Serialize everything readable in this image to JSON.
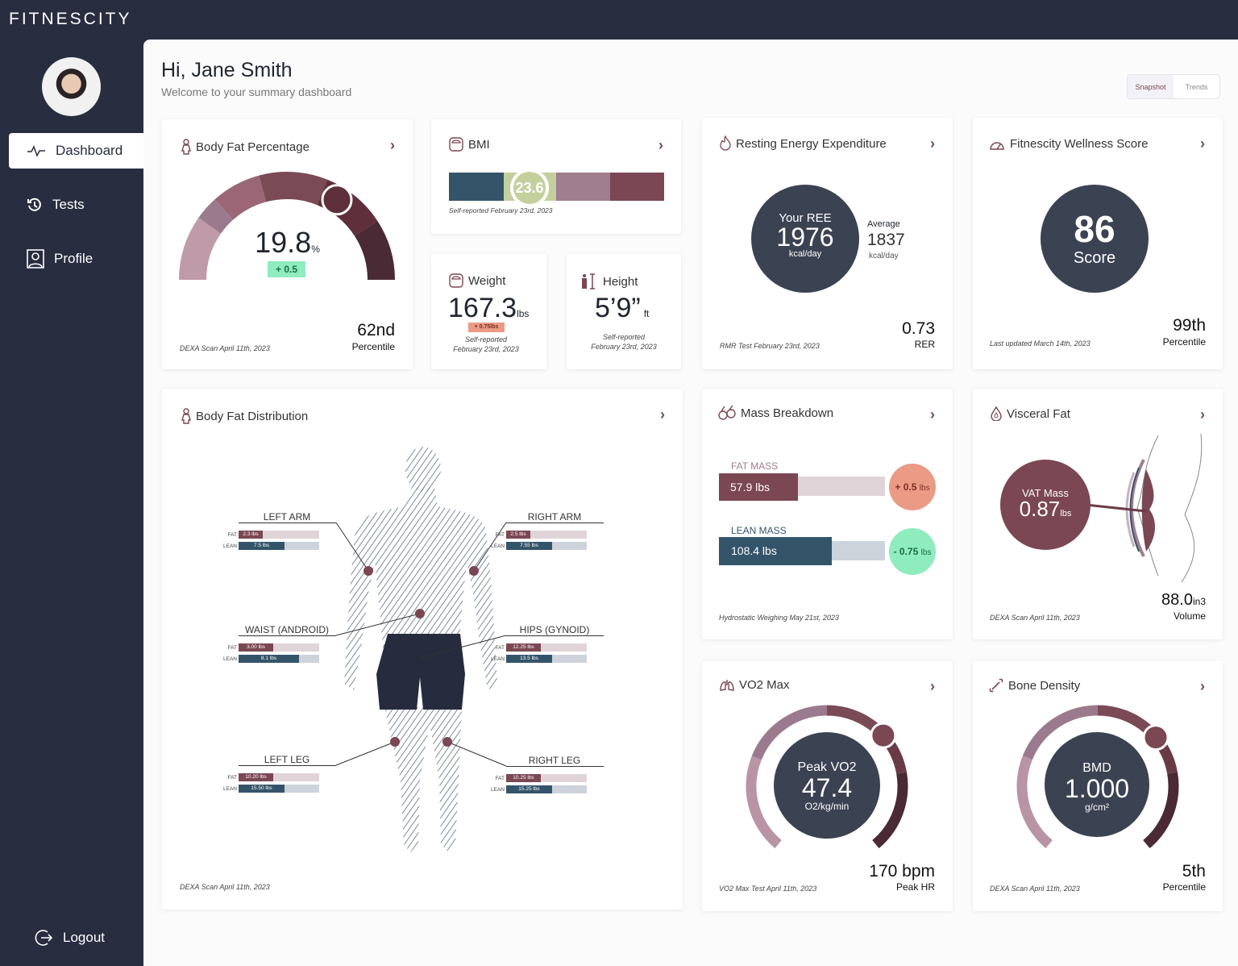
{
  "brand": "FITNESCITY",
  "sidebar": {
    "items": [
      {
        "label": "Dashboard",
        "icon": "pulse-icon",
        "active": true
      },
      {
        "label": "Tests",
        "icon": "history-icon"
      },
      {
        "label": "Profile",
        "icon": "profile-icon"
      }
    ],
    "logout": "Logout"
  },
  "header": {
    "title": "Hi, Jane Smith",
    "subtitle": "Welcome to your summary dashboard",
    "view_toggle": {
      "options": [
        "Snapshot",
        "Trends"
      ],
      "selected": "Snapshot"
    }
  },
  "colors": {
    "accent": "#7a4752",
    "navy": "#282d40",
    "slate": "#34546a",
    "circle": "#3b4252",
    "positive": "#8eecbe",
    "negative": "#eb9a85"
  },
  "body_fat": {
    "title": "Body Fat Percentage",
    "value": "19.8",
    "unit": "%",
    "change": "+ 0.5",
    "percentile": "62nd",
    "percentile_label": "Percentile",
    "source": "DEXA Scan April 11th, 2023"
  },
  "bmi": {
    "title": "BMI",
    "value": "23.6",
    "source": "Self-reported February 23rd, 2023"
  },
  "weight": {
    "title": "Weight",
    "value": "167.3",
    "unit": "lbs",
    "change": "+ 0.75lbs",
    "source1": "Self-reported",
    "source2": "February 23rd, 2023"
  },
  "height": {
    "title": "Height",
    "value": "5’9”",
    "unit": "ft",
    "source1": "Self-reported",
    "source2": "February 23rd, 2023"
  },
  "ree": {
    "title": "Resting Energy Expenditure",
    "label": "Your REE",
    "value": "1976",
    "unit": "kcal/day",
    "avg_label": "Average",
    "avg_value": "1837",
    "avg_unit": "kcal/day",
    "rer": "0.73",
    "rer_label": "RER",
    "source": "RMR Test February 23rd, 2023"
  },
  "wellness": {
    "title": "Fitnescity Wellness Score",
    "value": "86",
    "label": "Score",
    "percentile": "99th",
    "percentile_label": "Percentile",
    "source": "Last updated March 14th, 2023"
  },
  "distribution": {
    "title": "Body Fat Distribution",
    "source": "DEXA Scan April 11th, 2023",
    "fat_label": "FAT",
    "lean_label": "LEAN",
    "regions": [
      {
        "name": "LEFT ARM",
        "fat": "2.3 lbs",
        "lean": "7.5 lbs",
        "fat_fill": 0.3,
        "lean_fill": 0.57
      },
      {
        "name": "RIGHT ARM",
        "fat": "2.5 lbs",
        "lean": "7.55 lbs",
        "fat_fill": 0.3,
        "lean_fill": 0.57
      },
      {
        "name": "WAIST (ANDROID)",
        "fat": "3.00 lbs",
        "lean": "8.1 lbs",
        "fat_fill": 0.43,
        "lean_fill": 0.75
      },
      {
        "name": "HIPS (GYNOID)",
        "fat": "12.25 lbs",
        "lean": "13.5 lbs",
        "fat_fill": 0.43,
        "lean_fill": 0.57
      },
      {
        "name": "LEFT LEG",
        "fat": "10.20 lbs",
        "lean": "15.50 lbs",
        "fat_fill": 0.43,
        "lean_fill": 0.57
      },
      {
        "name": "RIGHT LEG",
        "fat": "10.25 lbs",
        "lean": "15.25 lbs",
        "fat_fill": 0.43,
        "lean_fill": 0.57
      }
    ]
  },
  "mass": {
    "title": "Mass Breakdown",
    "fat_label": "FAT MASS",
    "fat_value": "57.9 lbs",
    "fat_change": "+ 0.5",
    "lean_label": "LEAN MASS",
    "lean_value": "108.4 lbs",
    "lean_change": "- 0.75",
    "change_unit": "lbs",
    "source": "Hydrostatic Weighing May 21st, 2023"
  },
  "visceral": {
    "title": "Visceral Fat",
    "label": "VAT Mass",
    "value": "0.87",
    "unit": "lbs",
    "volume": "88.0",
    "volume_unit": "in3",
    "volume_label": "Volume",
    "source": "DEXA Scan April 11th, 2023"
  },
  "vo2": {
    "title": "VO2 Max",
    "label": "Peak VO2",
    "value": "47.4",
    "unit": "O2/kg/min",
    "hr": "170 bpm",
    "hr_label": "Peak HR",
    "source": "VO2 Max Test April 11th, 2023"
  },
  "bone": {
    "title": "Bone Density",
    "label": "BMD",
    "value": "1.000",
    "unit": "g/cm²",
    "percentile": "5th",
    "percentile_label": "Percentile",
    "source": "DEXA Scan April 11th, 2023"
  }
}
